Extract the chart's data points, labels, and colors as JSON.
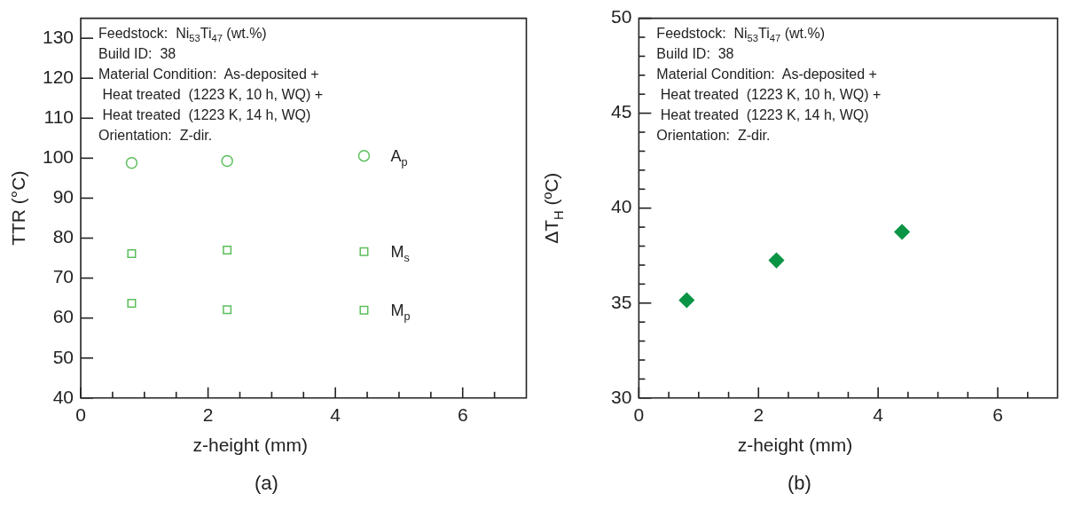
{
  "chart_data": [
    {
      "type": "scatter",
      "xlabel": "z-height (mm)",
      "ylabel": "TTR (°C)",
      "xlim": [
        0,
        7
      ],
      "ylim": [
        40,
        135
      ],
      "xticks": [
        0,
        {
          "value": 0.5,
          "label": null
        },
        {
          "value": 1,
          "label": null
        },
        {
          "value": 1.5,
          "label": null
        },
        2,
        {
          "value": 2.5,
          "label": null
        },
        {
          "value": 3,
          "label": null
        },
        {
          "value": 3.5,
          "label": null
        },
        4,
        {
          "value": 4.5,
          "label": null
        },
        {
          "value": 5,
          "label": null
        },
        {
          "value": 5.5,
          "label": null
        },
        6,
        {
          "value": 6.5,
          "label": null
        }
      ],
      "yticks": [
        40,
        50,
        60,
        70,
        80,
        90,
        100,
        110,
        120,
        130
      ],
      "grid": false,
      "legend": false,
      "series": [
        {
          "name": "A$_{p}$",
          "color": "#5cbf5c",
          "marker": "circle",
          "x": [
            0.8,
            2.3,
            4.45
          ],
          "values": [
            98.8,
            99.3,
            100.6
          ]
        },
        {
          "name": "M$_{s}$",
          "color": "#5cbf5c",
          "marker": "square",
          "x": [
            0.8,
            2.3,
            4.45
          ],
          "values": [
            76.1,
            77.0,
            76.6
          ]
        },
        {
          "name": "M$_{p}$",
          "color": "#5cbf5c",
          "marker": "square",
          "x": [
            0.8,
            2.3,
            4.45
          ],
          "values": [
            63.7,
            62.1,
            62.0
          ]
        }
      ],
      "annotations": [
        "Feedstock:  Ni$_{53}$Ti$_{47}$ (wt.%)",
        "Build ID:  38",
        "Material Condition:  As-deposited +",
        " Heat treated  (1223 K, 10 h, WQ) +",
        " Heat treated  (1223 K, 14 h, WQ)",
        "Orientation:  Z-dir.",
        "(a)"
      ]
    },
    {
      "type": "scatter",
      "xlabel": "z-height (mm)",
      "ylabel": "ΔT$_{H}$ (ºC)",
      "xlim": [
        0,
        7
      ],
      "ylim": [
        30,
        50
      ],
      "xticks": [
        0,
        {
          "value": 0.5,
          "label": null
        },
        {
          "value": 1,
          "label": null
        },
        {
          "value": 1.5,
          "label": null
        },
        2,
        {
          "value": 2.5,
          "label": null
        },
        {
          "value": 3,
          "label": null
        },
        {
          "value": 3.5,
          "label": null
        },
        4,
        {
          "value": 4.5,
          "label": null
        },
        {
          "value": 5,
          "label": null
        },
        {
          "value": 5.5,
          "label": null
        },
        6,
        {
          "value": 6.5,
          "label": null
        }
      ],
      "yticks": [
        30,
        {
          "value": 31,
          "label": null
        },
        {
          "value": 32,
          "label": null
        },
        {
          "value": 33,
          "label": null
        },
        {
          "value": 34,
          "label": null
        },
        35,
        {
          "value": 36,
          "label": null
        },
        {
          "value": 37,
          "label": null
        },
        {
          "value": 38,
          "label": null
        },
        {
          "value": 39,
          "label": null
        },
        40,
        {
          "value": 41,
          "label": null
        },
        {
          "value": 42,
          "label": null
        },
        {
          "value": 43,
          "label": null
        },
        {
          "value": 44,
          "label": null
        },
        45,
        {
          "value": 46,
          "label": null
        },
        {
          "value": 47,
          "label": null
        },
        {
          "value": 48,
          "label": null
        },
        {
          "value": 49,
          "label": null
        },
        50
      ],
      "grid": false,
      "legend": false,
      "marker": "diamond",
      "series": [
        {
          "color": "#0a9445",
          "x": [
            0.8,
            2.3,
            4.4
          ],
          "values": [
            35.15,
            37.25,
            38.75
          ]
        }
      ],
      "annotations": [
        "Feedstock:  Ni$_{53}$Ti$_{47}$ (wt.%)",
        "Build ID:  38",
        "Material Condition:  As-deposited +",
        " Heat treated  (1223 K, 10 h, WQ) +",
        " Heat treated  (1223 K, 14 h, WQ)",
        "Orientation:  Z-dir.",
        "(b)"
      ]
    }
  ]
}
